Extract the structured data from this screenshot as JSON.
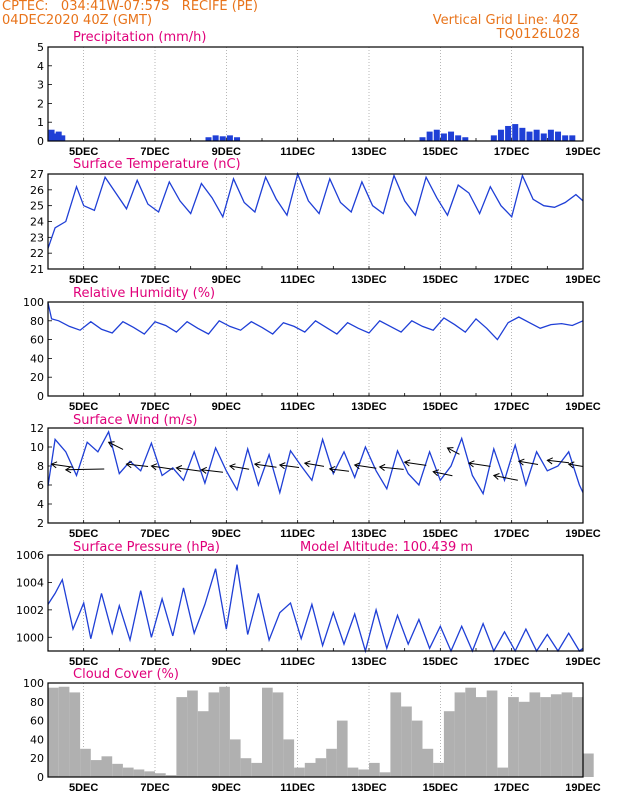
{
  "header": {
    "line1": "CPTEC:   034:41W-07:57S   RECIFE (PE)",
    "line2": "04DEC2020 40Z (GMT)",
    "grid_note": "Vertical Grid Line: 40Z",
    "code": "TQ0126L028"
  },
  "colors": {
    "header": "#e8731a",
    "title": "#e0007a",
    "line": "#1f3fd6",
    "cloud": "#b0b0b0",
    "bar": "#1f3fd6"
  },
  "chart_data": [
    {
      "id": "precip",
      "type": "bar",
      "title": "Precipitation (mm/h)",
      "ylim": [
        0,
        5
      ],
      "yticks": [
        0,
        1,
        2,
        3,
        4,
        5
      ],
      "xrange_days": [
        4.0,
        19.0
      ],
      "xticks": [
        "5DEC",
        "7DEC",
        "9DEC",
        "11DEC",
        "13DEC",
        "15DEC",
        "17DEC",
        "19DEC"
      ],
      "x": [
        4.1,
        4.2,
        4.3,
        4.4,
        8.5,
        8.7,
        8.9,
        9.1,
        9.3,
        14.5,
        14.7,
        14.9,
        15.1,
        15.3,
        15.5,
        15.7,
        16.5,
        16.7,
        16.9,
        17.1,
        17.3,
        17.5,
        17.7,
        17.9,
        18.1,
        18.3,
        18.5,
        18.7
      ],
      "values": [
        0.6,
        0.4,
        0.5,
        0.3,
        0.2,
        0.3,
        0.25,
        0.3,
        0.2,
        0.2,
        0.5,
        0.6,
        0.4,
        0.5,
        0.3,
        0.2,
        0.3,
        0.6,
        0.8,
        0.9,
        0.7,
        0.5,
        0.6,
        0.4,
        0.6,
        0.5,
        0.3,
        0.3
      ]
    },
    {
      "id": "temp",
      "type": "line",
      "title": "Surface Temperature (nC)",
      "ylim": [
        21,
        27
      ],
      "yticks": [
        21,
        22,
        23,
        24,
        25,
        26,
        27
      ],
      "xrange_days": [
        4.0,
        19.0
      ],
      "xticks": [
        "5DEC",
        "7DEC",
        "9DEC",
        "11DEC",
        "13DEC",
        "15DEC",
        "17DEC",
        "19DEC"
      ],
      "x": [
        4.0,
        4.2,
        4.5,
        4.8,
        5.0,
        5.3,
        5.6,
        5.9,
        6.2,
        6.5,
        6.8,
        7.1,
        7.4,
        7.7,
        8.0,
        8.3,
        8.6,
        8.9,
        9.2,
        9.5,
        9.8,
        10.1,
        10.4,
        10.7,
        11.0,
        11.3,
        11.6,
        11.9,
        12.2,
        12.5,
        12.8,
        13.1,
        13.4,
        13.7,
        14.0,
        14.3,
        14.6,
        14.9,
        15.2,
        15.5,
        15.8,
        16.1,
        16.4,
        16.7,
        17.0,
        17.3,
        17.6,
        17.9,
        18.2,
        18.5,
        18.8,
        19.0
      ],
      "values": [
        22.3,
        23.6,
        24.0,
        26.2,
        25.0,
        24.7,
        26.8,
        25.8,
        24.8,
        26.6,
        25.1,
        24.6,
        26.5,
        25.3,
        24.5,
        26.4,
        25.5,
        24.3,
        26.7,
        25.2,
        24.6,
        26.8,
        25.4,
        24.4,
        27.0,
        25.3,
        24.5,
        26.7,
        25.2,
        24.6,
        26.5,
        25.0,
        24.5,
        26.9,
        25.3,
        24.4,
        26.8,
        25.5,
        24.4,
        26.3,
        25.8,
        24.5,
        26.2,
        25.0,
        24.3,
        26.9,
        25.4,
        25.0,
        24.9,
        25.2,
        25.7,
        25.3
      ]
    },
    {
      "id": "rh",
      "type": "line",
      "title": "Relative Humidity (%)",
      "ylim": [
        0,
        100
      ],
      "yticks": [
        0,
        20,
        40,
        60,
        80,
        100
      ],
      "xrange_days": [
        4.0,
        19.0
      ],
      "xticks": [
        "5DEC",
        "7DEC",
        "9DEC",
        "11DEC",
        "13DEC",
        "15DEC",
        "17DEC",
        "19DEC"
      ],
      "x": [
        4.0,
        4.1,
        4.3,
        4.6,
        4.9,
        5.2,
        5.5,
        5.8,
        6.1,
        6.4,
        6.7,
        7.0,
        7.3,
        7.6,
        7.9,
        8.2,
        8.5,
        8.8,
        9.1,
        9.4,
        9.7,
        10.0,
        10.3,
        10.6,
        10.9,
        11.2,
        11.5,
        11.8,
        12.1,
        12.4,
        12.7,
        13.0,
        13.3,
        13.6,
        13.9,
        14.2,
        14.5,
        14.8,
        15.1,
        15.4,
        15.7,
        16.0,
        16.3,
        16.6,
        16.9,
        17.2,
        17.5,
        17.8,
        18.1,
        18.4,
        18.7,
        19.0
      ],
      "values": [
        99,
        82,
        80,
        74,
        70,
        79,
        71,
        67,
        79,
        73,
        66,
        79,
        75,
        68,
        79,
        72,
        66,
        80,
        74,
        70,
        79,
        73,
        66,
        78,
        74,
        68,
        80,
        73,
        66,
        78,
        72,
        67,
        80,
        74,
        68,
        80,
        74,
        70,
        83,
        76,
        68,
        82,
        72,
        60,
        78,
        84,
        78,
        72,
        76,
        77,
        75,
        80
      ]
    },
    {
      "id": "wind",
      "type": "line",
      "title": "Surface Wind (m/s)",
      "ylim": [
        2,
        12
      ],
      "yticks": [
        2,
        4,
        6,
        8,
        10,
        12
      ],
      "xrange_days": [
        4.0,
        19.0
      ],
      "xticks": [
        "5DEC",
        "7DEC",
        "9DEC",
        "11DEC",
        "13DEC",
        "15DEC",
        "17DEC",
        "19DEC"
      ],
      "x": [
        4.0,
        4.2,
        4.5,
        4.8,
        5.1,
        5.4,
        5.7,
        6.0,
        6.3,
        6.6,
        6.9,
        7.2,
        7.5,
        7.8,
        8.1,
        8.4,
        8.7,
        9.0,
        9.3,
        9.6,
        9.9,
        10.2,
        10.5,
        10.8,
        11.1,
        11.4,
        11.7,
        12.0,
        12.3,
        12.6,
        12.9,
        13.2,
        13.5,
        13.8,
        14.1,
        14.4,
        14.7,
        15.0,
        15.3,
        15.6,
        15.9,
        16.2,
        16.5,
        16.8,
        17.1,
        17.4,
        17.7,
        18.0,
        18.3,
        18.6,
        18.9,
        19.0
      ],
      "values": [
        5.9,
        10.8,
        9.5,
        7.0,
        10.5,
        9.5,
        11.6,
        7.2,
        8.5,
        7.5,
        10.4,
        7.0,
        7.8,
        6.5,
        9.5,
        6.2,
        9.9,
        7.5,
        5.5,
        9.8,
        6.0,
        9.2,
        5.2,
        9.6,
        8.0,
        6.5,
        10.8,
        7.2,
        9.5,
        6.8,
        10.0,
        7.5,
        5.6,
        9.6,
        7.2,
        6.0,
        9.5,
        6.5,
        8.0,
        10.9,
        7.0,
        5.1,
        9.8,
        6.5,
        10.2,
        6.0,
        9.5,
        7.5,
        8.0,
        9.5,
        6.0,
        5.2
      ],
      "vectors": [
        {
          "x": 4.1,
          "y": 8.2,
          "dx": 0.9,
          "dy": -0.4
        },
        {
          "x": 4.5,
          "y": 7.6,
          "dx": 1.6,
          "dy": 0.1
        },
        {
          "x": 5.7,
          "y": 10.5,
          "dx": 0.6,
          "dy": -0.9
        },
        {
          "x": 6.2,
          "y": 8.2,
          "dx": 0.9,
          "dy": -0.3
        },
        {
          "x": 6.9,
          "y": 8.0,
          "dx": 0.9,
          "dy": -0.4
        },
        {
          "x": 7.6,
          "y": 7.8,
          "dx": 1.0,
          "dy": -0.4
        },
        {
          "x": 8.3,
          "y": 7.6,
          "dx": 0.9,
          "dy": -0.3
        },
        {
          "x": 9.1,
          "y": 8.0,
          "dx": 0.8,
          "dy": -0.4
        },
        {
          "x": 9.8,
          "y": 8.2,
          "dx": 0.9,
          "dy": -0.4
        },
        {
          "x": 10.5,
          "y": 8.1,
          "dx": 0.8,
          "dy": -0.3
        },
        {
          "x": 11.2,
          "y": 8.3,
          "dx": 0.8,
          "dy": -0.4
        },
        {
          "x": 11.9,
          "y": 7.7,
          "dx": 0.8,
          "dy": -0.3
        },
        {
          "x": 12.6,
          "y": 8.1,
          "dx": 0.9,
          "dy": -0.4
        },
        {
          "x": 13.3,
          "y": 7.9,
          "dx": 1.0,
          "dy": -0.3
        },
        {
          "x": 14.0,
          "y": 8.4,
          "dx": 0.9,
          "dy": -0.4
        },
        {
          "x": 14.8,
          "y": 7.4,
          "dx": 0.8,
          "dy": -0.5
        },
        {
          "x": 15.2,
          "y": 9.9,
          "dx": 0.5,
          "dy": -0.8
        },
        {
          "x": 15.8,
          "y": 8.3,
          "dx": 0.9,
          "dy": -0.4
        },
        {
          "x": 16.5,
          "y": 7.0,
          "dx": 1.0,
          "dy": -0.6
        },
        {
          "x": 17.2,
          "y": 8.5,
          "dx": 0.8,
          "dy": -0.4
        },
        {
          "x": 18.0,
          "y": 8.6,
          "dx": 0.9,
          "dy": -0.3
        },
        {
          "x": 18.6,
          "y": 8.2,
          "dx": 0.6,
          "dy": -0.3
        }
      ]
    },
    {
      "id": "press",
      "type": "line",
      "title": "Surface Pressure (hPa)",
      "subtitle": "Model Altitude: 100.439 m",
      "ylim": [
        999,
        1006
      ],
      "yticks": [
        1000,
        1002,
        1004,
        1006
      ],
      "xrange_days": [
        4.0,
        19.0
      ],
      "xticks": [
        "5DEC",
        "7DEC",
        "9DEC",
        "11DEC",
        "13DEC",
        "15DEC",
        "17DEC",
        "19DEC"
      ],
      "x": [
        4.0,
        4.2,
        4.4,
        4.7,
        5.0,
        5.2,
        5.5,
        5.8,
        6.0,
        6.3,
        6.6,
        6.9,
        7.2,
        7.5,
        7.8,
        8.1,
        8.4,
        8.7,
        9.0,
        9.3,
        9.6,
        9.9,
        10.2,
        10.5,
        10.8,
        11.1,
        11.4,
        11.7,
        12.0,
        12.3,
        12.6,
        12.9,
        13.2,
        13.5,
        13.8,
        14.1,
        14.4,
        14.7,
        15.0,
        15.3,
        15.6,
        15.9,
        16.2,
        16.5,
        16.8,
        17.1,
        17.4,
        17.7,
        18.0,
        18.3,
        18.6,
        18.9,
        19.0
      ],
      "values": [
        1002.4,
        1003.2,
        1004.2,
        1000.6,
        1002.5,
        999.9,
        1003.2,
        1000.3,
        1002.3,
        999.8,
        1003.4,
        1000.0,
        1002.8,
        1000.1,
        1003.6,
        1000.3,
        1002.4,
        1005.0,
        1000.6,
        1005.3,
        1000.2,
        1003.2,
        999.8,
        1001.8,
        1002.5,
        999.9,
        1002.4,
        999.4,
        1001.8,
        999.5,
        1001.7,
        999.0,
        1002.0,
        999.2,
        1001.6,
        999.5,
        1001.3,
        999.2,
        1000.8,
        999.0,
        1000.8,
        998.9,
        1001.0,
        999.0,
        1000.4,
        999.0,
        1000.6,
        998.8,
        1000.2,
        998.9,
        1000.3,
        998.8,
        999.2
      ]
    },
    {
      "id": "cloud",
      "type": "area",
      "title": "Cloud Cover (%)",
      "ylim": [
        0,
        100
      ],
      "yticks": [
        0,
        20,
        40,
        60,
        80,
        100
      ],
      "xrange_days": [
        4.0,
        19.0
      ],
      "xticks": [
        "5DEC",
        "7DEC",
        "9DEC",
        "11DEC",
        "13DEC",
        "15DEC",
        "17DEC",
        "19DEC"
      ],
      "x": [
        4.0,
        4.3,
        4.6,
        4.9,
        5.2,
        5.5,
        5.8,
        6.1,
        6.4,
        6.7,
        7.0,
        7.3,
        7.6,
        7.9,
        8.2,
        8.5,
        8.8,
        9.1,
        9.4,
        9.7,
        10.0,
        10.3,
        10.6,
        10.9,
        11.2,
        11.5,
        11.8,
        12.1,
        12.4,
        12.7,
        13.0,
        13.3,
        13.6,
        13.9,
        14.2,
        14.5,
        14.8,
        15.1,
        15.4,
        15.7,
        16.0,
        16.3,
        16.6,
        16.9,
        17.2,
        17.5,
        17.8,
        18.1,
        18.4,
        18.7,
        19.0
      ],
      "values": [
        95,
        96,
        90,
        30,
        18,
        22,
        14,
        10,
        8,
        6,
        4,
        2,
        85,
        92,
        70,
        90,
        96,
        40,
        20,
        15,
        95,
        90,
        40,
        10,
        15,
        20,
        30,
        60,
        10,
        8,
        15,
        5,
        90,
        75,
        60,
        30,
        15,
        70,
        90,
        95,
        85,
        92,
        10,
        85,
        80,
        90,
        85,
        88,
        90,
        85,
        25
      ]
    }
  ]
}
